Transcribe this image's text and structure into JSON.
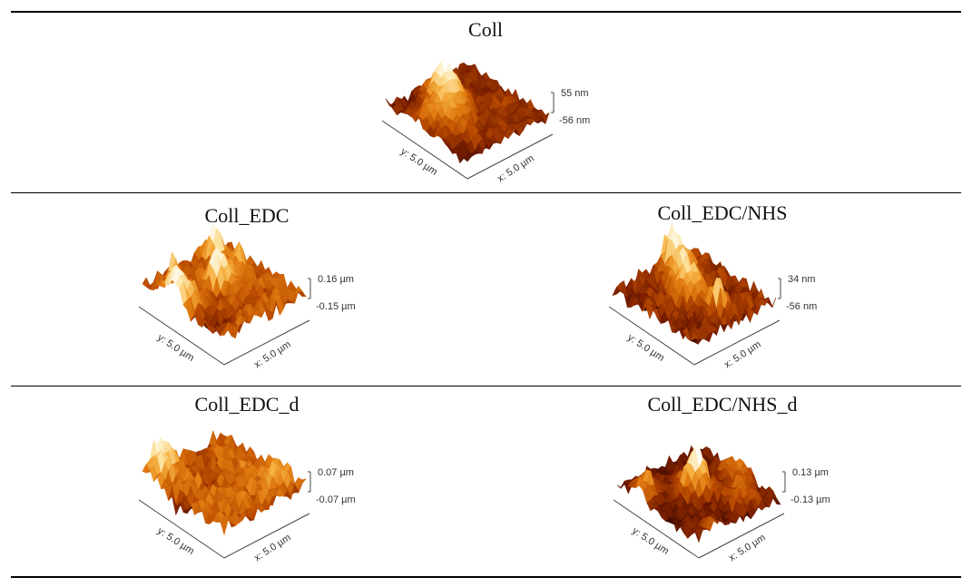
{
  "figure": {
    "panels": [
      {
        "id": "coll",
        "title": "Coll",
        "z_max": "55 nm",
        "z_min": "-56 nm",
        "x_axis": "x: 5.0 µm",
        "y_axis": "y: 5.0 µm",
        "seed": 3
      },
      {
        "id": "coll-edc",
        "title": "Coll_EDC",
        "z_max": "0.16 µm",
        "z_min": "-0.15 µm",
        "x_axis": "x: 5.0 µm",
        "y_axis": "y: 5.0 µm",
        "seed": 11
      },
      {
        "id": "coll-edc-nhs",
        "title": "Coll_EDC/NHS",
        "z_max": "34 nm",
        "z_min": "-56 nm",
        "x_axis": "x: 5.0 µm",
        "y_axis": "y: 5.0 µm",
        "seed": 23
      },
      {
        "id": "coll-edc-d",
        "title": "Coll_EDC_d",
        "z_max": "0.07 µm",
        "z_min": "-0.07 µm",
        "x_axis": "x: 5.0 µm",
        "y_axis": "y: 5.0 µm",
        "seed": 37
      },
      {
        "id": "coll-edc-nhs-d",
        "title": "Coll_EDC/NHS_d",
        "z_max": "0.13 µm",
        "z_min": "-0.13 µm",
        "x_axis": "x: 5.0 µm",
        "y_axis": "y: 5.0 µm",
        "seed": 51
      }
    ],
    "colormap": [
      "#3a0a00",
      "#7a1f00",
      "#b84a00",
      "#e07a10",
      "#f5b040",
      "#fde6a8",
      "#ffffff"
    ]
  }
}
